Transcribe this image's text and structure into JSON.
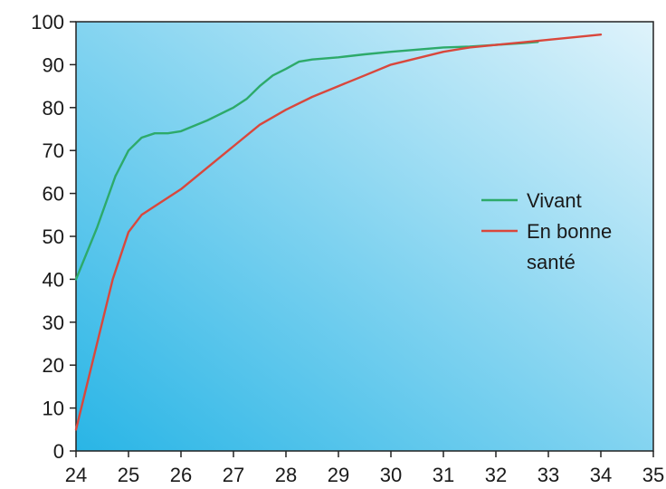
{
  "chart_data": {
    "type": "line",
    "title": "",
    "xlabel": "",
    "ylabel": "",
    "xlim": [
      24,
      35
    ],
    "ylim": [
      0,
      100
    ],
    "x_ticks": [
      24,
      25,
      26,
      27,
      28,
      29,
      30,
      31,
      32,
      33,
      34,
      35
    ],
    "y_ticks": [
      0,
      10,
      20,
      30,
      40,
      50,
      60,
      70,
      80,
      90,
      100
    ],
    "grid": false,
    "legend_position": "right",
    "background": {
      "gradient_from": "#29b5e6",
      "gradient_to": "#dff3fb"
    },
    "series": [
      {
        "name": "Vivant",
        "color": "#2daa6a",
        "x": [
          24,
          24.4,
          24.75,
          25,
          25.25,
          25.5,
          25.75,
          26,
          26.5,
          27,
          27.25,
          27.5,
          27.75,
          28,
          28.25,
          28.5,
          29,
          29.5,
          30,
          30.5,
          31,
          31.5,
          32,
          32.5,
          32.8
        ],
        "y": [
          40,
          52,
          64,
          70,
          73,
          74,
          74,
          74.5,
          77,
          80,
          82,
          85,
          87.5,
          89,
          90.7,
          91.2,
          91.7,
          92.4,
          93,
          93.5,
          94,
          94.2,
          94.6,
          95,
          95.3
        ]
      },
      {
        "name": "En bonne santé",
        "color": "#d9473c",
        "x": [
          24,
          24.3,
          24.7,
          25,
          25.25,
          25.5,
          26,
          26.5,
          27,
          27.5,
          28,
          28.5,
          29,
          29.5,
          30,
          30.5,
          31,
          31.5,
          32,
          32.5,
          33,
          33.5,
          34
        ],
        "y": [
          5,
          20,
          40,
          51,
          55,
          57,
          61,
          66,
          71,
          76,
          79.5,
          82.5,
          85,
          87.5,
          90,
          91.5,
          93,
          94,
          94.6,
          95.2,
          95.8,
          96.4,
          97
        ]
      }
    ],
    "legend": [
      {
        "label_lines": [
          "Vivant"
        ],
        "color": "#2daa6a"
      },
      {
        "label_lines": [
          "En bonne",
          "santé"
        ],
        "color": "#d9473c"
      }
    ]
  }
}
